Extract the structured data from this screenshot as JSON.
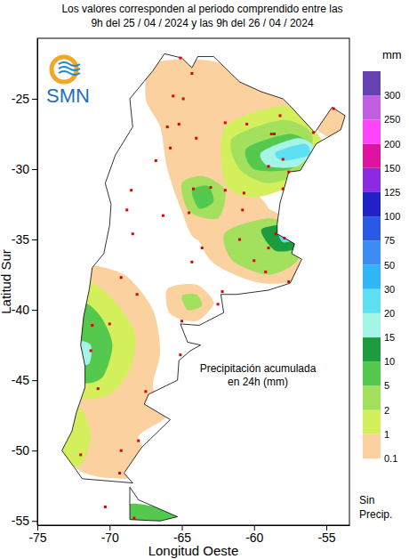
{
  "chart_data": {
    "type": "map",
    "title": [
      "Los valores corresponden al periodo comprendido entre las",
      "9h del 25 / 04 / 2024  y las 9h del 26 / 04 / 2024"
    ],
    "x_label": "Longitud Oeste",
    "y_label": "Latitud Sur",
    "xlim": [
      -75,
      -53.4
    ],
    "ylim": [
      -55.3,
      -20.7
    ],
    "xticks": [
      -75,
      -70,
      -65,
      -60,
      -55
    ],
    "yticks": [
      -25,
      -30,
      -35,
      -40,
      -45,
      -50,
      -55
    ],
    "annotation": [
      "Precipitación acumulada",
      "en 24h (mm)"
    ],
    "logo": "SMN",
    "colorbar": {
      "title": "mm",
      "levels": [
        0.1,
        1,
        2,
        5,
        10,
        15,
        20,
        30,
        50,
        75,
        100,
        125,
        150,
        200,
        250,
        300
      ],
      "colors": [
        "#fcd1a0",
        "#d4ef5c",
        "#a3e05e",
        "#55c84e",
        "#1c9c3e",
        "#a4f5e6",
        "#5fe0f2",
        "#2fb6f3",
        "#3c8cf2",
        "#2a5ae4",
        "#2222c4",
        "#8a2be2",
        "#e012a0",
        "#ff44ff",
        "#c060e0",
        "#6442b0"
      ],
      "no_precip_label": [
        "Sin",
        "Precip."
      ]
    },
    "outline": [
      [
        [
          -66.2,
          -21.8
        ],
        [
          -65.0,
          -22.1
        ],
        [
          -64.3,
          -22.8
        ],
        [
          -63.9,
          -22.0
        ],
        [
          -62.8,
          -22.0
        ],
        [
          -62.3,
          -22.5
        ],
        [
          -61.0,
          -23.8
        ],
        [
          -59.5,
          -24.5
        ],
        [
          -58.0,
          -25.0
        ],
        [
          -57.6,
          -25.4
        ],
        [
          -55.8,
          -27.4
        ],
        [
          -54.6,
          -25.6
        ],
        [
          -53.7,
          -26.2
        ],
        [
          -54.0,
          -27.2
        ],
        [
          -55.7,
          -28.2
        ],
        [
          -56.8,
          -30.1
        ],
        [
          -57.6,
          -30.2
        ],
        [
          -58.2,
          -32.4
        ],
        [
          -58.4,
          -33.9
        ],
        [
          -58.4,
          -34.6
        ],
        [
          -57.2,
          -35.3
        ],
        [
          -57.4,
          -36.0
        ],
        [
          -56.7,
          -36.4
        ],
        [
          -57.5,
          -38.1
        ],
        [
          -59.0,
          -38.6
        ],
        [
          -61.2,
          -38.9
        ],
        [
          -62.3,
          -38.9
        ],
        [
          -62.1,
          -40.2
        ],
        [
          -63.8,
          -41.1
        ],
        [
          -65.1,
          -41.0
        ],
        [
          -64.6,
          -42.3
        ],
        [
          -63.7,
          -42.5
        ],
        [
          -64.4,
          -42.9
        ],
        [
          -65.2,
          -43.6
        ],
        [
          -65.3,
          -45.0
        ],
        [
          -67.3,
          -46.0
        ],
        [
          -67.6,
          -46.7
        ],
        [
          -65.8,
          -47.8
        ],
        [
          -67.8,
          -49.8
        ],
        [
          -69.0,
          -51.6
        ],
        [
          -68.4,
          -52.3
        ],
        [
          -71.9,
          -52.0
        ],
        [
          -72.3,
          -51.4
        ],
        [
          -73.3,
          -50.0
        ],
        [
          -72.6,
          -48.6
        ],
        [
          -72.3,
          -47.3
        ],
        [
          -71.7,
          -45.5
        ],
        [
          -71.7,
          -44.0
        ],
        [
          -72.0,
          -42.5
        ],
        [
          -71.8,
          -40.5
        ],
        [
          -71.4,
          -38.5
        ],
        [
          -71.2,
          -37.0
        ],
        [
          -70.4,
          -36.0
        ],
        [
          -70.0,
          -34.0
        ],
        [
          -69.9,
          -32.5
        ],
        [
          -70.3,
          -31.0
        ],
        [
          -69.6,
          -29.0
        ],
        [
          -68.4,
          -27.0
        ],
        [
          -68.6,
          -25.0
        ],
        [
          -67.0,
          -23.0
        ]
      ],
      [
        [
          -68.6,
          -52.6
        ],
        [
          -68.0,
          -53.5
        ],
        [
          -65.3,
          -54.7
        ],
        [
          -66.5,
          -55.0
        ],
        [
          -68.6,
          -54.9
        ]
      ]
    ],
    "regions": [
      {
        "level": 0.1,
        "points": [
          [
            -67,
            -22.5
          ],
          [
            -63,
            -22.3
          ],
          [
            -59,
            -24
          ],
          [
            -56,
            -26.5
          ],
          [
            -57,
            -29
          ],
          [
            -60,
            -31
          ],
          [
            -59,
            -33
          ],
          [
            -61,
            -35
          ],
          [
            -64,
            -35
          ],
          [
            -65,
            -33
          ],
          [
            -66,
            -30
          ],
          [
            -66.5,
            -27
          ],
          [
            -67.5,
            -25
          ]
        ]
      },
      {
        "level": 0.1,
        "points": [
          [
            -56,
            -25.2
          ],
          [
            -54.5,
            -25
          ],
          [
            -53.5,
            -26.5
          ],
          [
            -54.5,
            -27.8
          ],
          [
            -55.8,
            -27
          ]
        ]
      },
      {
        "level": 0.1,
        "points": [
          [
            -64,
            -33.5
          ],
          [
            -60,
            -32.5
          ],
          [
            -57,
            -34.2
          ],
          [
            -56.8,
            -36.5
          ],
          [
            -57.5,
            -38
          ],
          [
            -60,
            -38
          ],
          [
            -63,
            -36.5
          ]
        ]
      },
      {
        "level": 0.1,
        "points": [
          [
            -66,
            -38.5
          ],
          [
            -64,
            -38.2
          ],
          [
            -62.8,
            -39.5
          ],
          [
            -64,
            -40.8
          ],
          [
            -65.8,
            -40.3
          ]
        ]
      },
      {
        "level": 0.1,
        "points": [
          [
            -72,
            -37
          ],
          [
            -69,
            -37.5
          ],
          [
            -67,
            -40
          ],
          [
            -66.5,
            -43
          ],
          [
            -67,
            -45.5
          ],
          [
            -66,
            -47.5
          ],
          [
            -68,
            -49
          ],
          [
            -67,
            -51
          ],
          [
            -69,
            -52
          ],
          [
            -72.5,
            -51
          ],
          [
            -73,
            -45
          ],
          [
            -72,
            -41
          ]
        ]
      },
      {
        "level": 1,
        "points": [
          [
            -62,
            -27
          ],
          [
            -58,
            -25.5
          ],
          [
            -56,
            -27
          ],
          [
            -55,
            -29
          ],
          [
            -57,
            -31
          ],
          [
            -60,
            -32
          ],
          [
            -62,
            -31
          ]
        ]
      },
      {
        "level": 1,
        "points": [
          [
            -71.8,
            -38
          ],
          [
            -70,
            -39
          ],
          [
            -68.3,
            -41.5
          ],
          [
            -68.5,
            -44
          ],
          [
            -70,
            -46
          ],
          [
            -72.5,
            -46
          ],
          [
            -72.5,
            -41
          ]
        ]
      },
      {
        "level": 1,
        "points": [
          [
            -73,
            -47.5
          ],
          [
            -72,
            -47
          ],
          [
            -71.3,
            -49
          ],
          [
            -72,
            -51
          ],
          [
            -73.5,
            -51
          ]
        ]
      },
      {
        "level": 2,
        "points": [
          [
            -61.5,
            -27.8
          ],
          [
            -58,
            -26.5
          ],
          [
            -56,
            -27.5
          ],
          [
            -56.5,
            -30
          ],
          [
            -59,
            -31
          ],
          [
            -61,
            -30
          ]
        ]
      },
      {
        "level": 2,
        "points": [
          [
            -62,
            -34.5
          ],
          [
            -59,
            -33.5
          ],
          [
            -57,
            -34.3
          ],
          [
            -57,
            -36.5
          ],
          [
            -59,
            -37.5
          ],
          [
            -61.5,
            -36.5
          ]
        ]
      },
      {
        "level": 2,
        "points": [
          [
            -65,
            -31
          ],
          [
            -63.5,
            -30.5
          ],
          [
            -62,
            -31.5
          ],
          [
            -62.5,
            -33.5
          ],
          [
            -64.5,
            -33
          ]
        ]
      },
      {
        "level": 2,
        "points": [
          [
            -65,
            -39
          ],
          [
            -64,
            -38.9
          ],
          [
            -63.6,
            -39.7
          ],
          [
            -64.6,
            -40
          ]
        ]
      },
      {
        "level": 5,
        "points": [
          [
            -60.5,
            -28.5
          ],
          [
            -57.5,
            -27.5
          ],
          [
            -56,
            -28.5
          ],
          [
            -57.5,
            -30
          ],
          [
            -60,
            -30
          ]
        ]
      },
      {
        "level": 5,
        "points": [
          [
            -64.3,
            -31.5
          ],
          [
            -63.2,
            -31.2
          ],
          [
            -62.8,
            -32.3
          ],
          [
            -63.8,
            -32.8
          ]
        ]
      },
      {
        "level": 5,
        "points": [
          [
            -71.8,
            -39.5
          ],
          [
            -70.6,
            -40.5
          ],
          [
            -69.8,
            -42.5
          ],
          [
            -70.5,
            -44.8
          ],
          [
            -72,
            -45
          ],
          [
            -72.3,
            -41.5
          ]
        ]
      },
      {
        "level": 5,
        "points": [
          [
            -68.6,
            -53.8
          ],
          [
            -66,
            -54.2
          ],
          [
            -65,
            -54.8
          ],
          [
            -68.6,
            -55.5
          ]
        ]
      },
      {
        "level": 10,
        "points": [
          [
            -59.5,
            -34.3
          ],
          [
            -57.5,
            -34
          ],
          [
            -56.8,
            -35.5
          ],
          [
            -58.5,
            -35.8
          ]
        ]
      },
      {
        "level": 15,
        "points": [
          [
            -59.5,
            -28.8
          ],
          [
            -57,
            -27.8
          ],
          [
            -55.8,
            -28.5
          ],
          [
            -57,
            -29.8
          ],
          [
            -59,
            -29.8
          ]
        ]
      },
      {
        "level": 15,
        "points": [
          [
            -72.2,
            -42.3
          ],
          [
            -71.3,
            -42.5
          ],
          [
            -71.4,
            -43.8
          ],
          [
            -72.3,
            -43.8
          ]
        ]
      },
      {
        "level": 20,
        "points": [
          [
            -58.5,
            -28.8
          ],
          [
            -56.5,
            -28.2
          ],
          [
            -56.2,
            -29.0
          ],
          [
            -58,
            -29.4
          ]
        ]
      },
      {
        "level": 20,
        "points": [
          [
            -58.3,
            -34.5
          ],
          [
            -57.5,
            -34.4
          ],
          [
            -57.2,
            -35.0
          ],
          [
            -58,
            -35.2
          ]
        ]
      }
    ],
    "stations": [
      [
        -65.1,
        -22.1
      ],
      [
        -65.6,
        -24.8
      ],
      [
        -64.3,
        -23.2
      ],
      [
        -65.2,
        -26.8
      ],
      [
        -64.0,
        -27.8
      ],
      [
        -62.0,
        -26.7
      ],
      [
        -60.5,
        -26.8
      ],
      [
        -58.6,
        -27.5
      ],
      [
        -58.8,
        -27.5
      ],
      [
        -55.9,
        -27.4
      ],
      [
        -54.5,
        -25.7
      ],
      [
        -58.2,
        -26.2
      ],
      [
        -64.2,
        -31.4
      ],
      [
        -63.0,
        -31.3
      ],
      [
        -64.5,
        -33.1
      ],
      [
        -62.0,
        -31.5
      ],
      [
        -60.7,
        -31.7
      ],
      [
        -60.8,
        -32.9
      ],
      [
        -58.0,
        -29.3
      ],
      [
        -59.0,
        -29.8
      ],
      [
        -57.6,
        -30.2
      ],
      [
        -58.0,
        -31.4
      ],
      [
        -58.5,
        -34.6
      ],
      [
        -57.9,
        -34.9
      ],
      [
        -60.0,
        -36.5
      ],
      [
        -62.2,
        -38.7
      ],
      [
        -57.6,
        -38.0
      ],
      [
        -59.2,
        -37.3
      ],
      [
        -61.0,
        -35.0
      ],
      [
        -63.6,
        -35.6
      ],
      [
        -64.3,
        -36.6
      ],
      [
        -66.3,
        -33.3
      ],
      [
        -68.8,
        -32.9
      ],
      [
        -68.5,
        -31.5
      ],
      [
        -66.8,
        -29.4
      ],
      [
        -65.8,
        -28.5
      ],
      [
        -68.4,
        -34.6
      ],
      [
        -69.2,
        -37.7
      ],
      [
        -68.1,
        -38.9
      ],
      [
        -71.2,
        -41.1
      ],
      [
        -70.0,
        -41.0
      ],
      [
        -65.0,
        -40.8
      ],
      [
        -65.1,
        -43.2
      ],
      [
        -71.3,
        -42.9
      ],
      [
        -67.5,
        -45.8
      ],
      [
        -70.8,
        -45.6
      ],
      [
        -69.2,
        -50.0
      ],
      [
        -68.0,
        -49.3
      ],
      [
        -69.3,
        -51.6
      ],
      [
        -72.0,
        -50.3
      ],
      [
        -70.3,
        -54.0
      ],
      [
        -68.3,
        -54.8
      ],
      [
        -62.5,
        -39.6
      ],
      [
        -59.0,
        -35.6
      ],
      [
        -66.0,
        -27.0
      ],
      [
        -64.9,
        -25.0
      ]
    ]
  }
}
